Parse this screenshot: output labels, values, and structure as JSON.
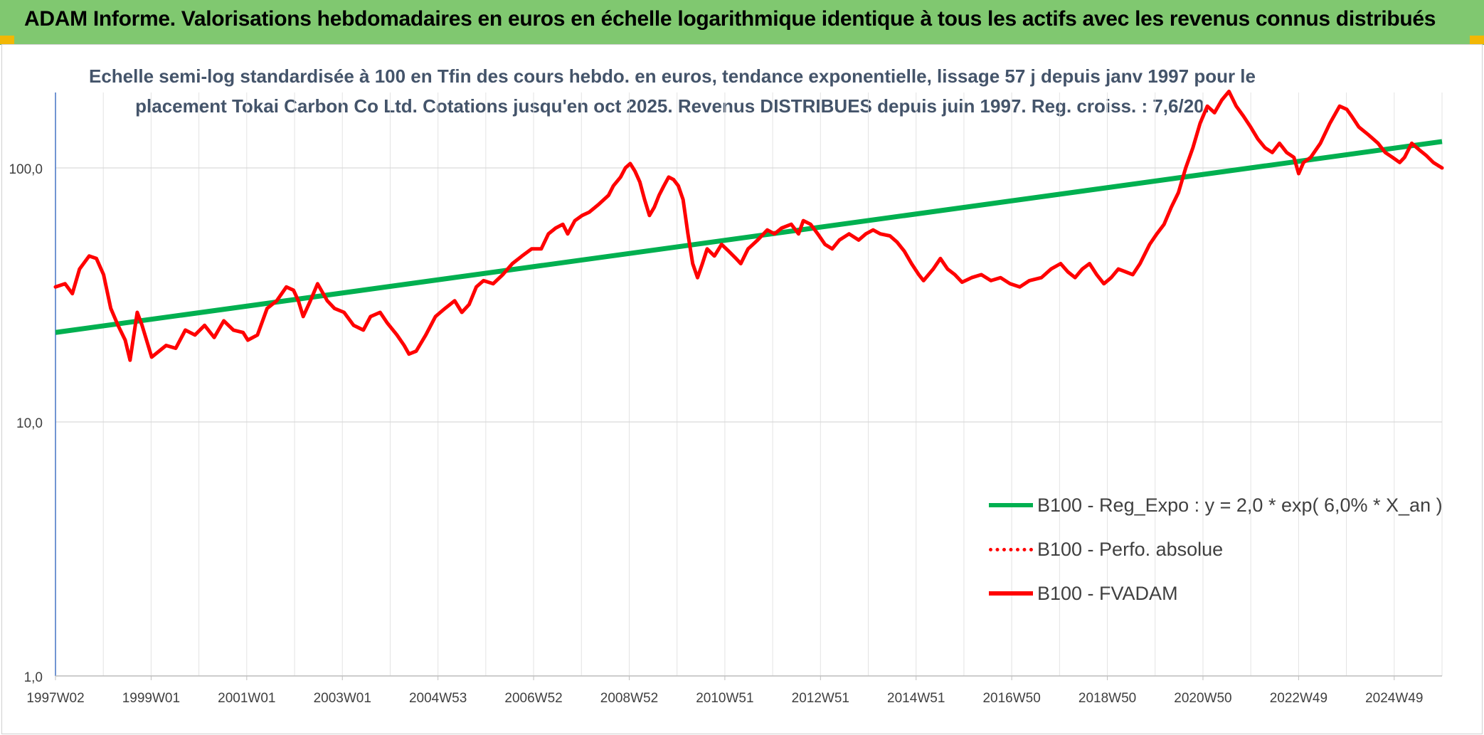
{
  "header": {
    "title": "ADAM Informe. Valorisations hebdomadaires en euros en échelle logarithmique identique à tous les actifs avec les revenus connus distribués"
  },
  "colors": {
    "header_bg": "#80c870",
    "trend": "#00b050",
    "series": "#ff0000",
    "title_text": "#44546a"
  },
  "chart_data": {
    "type": "line",
    "title_line1": "Echelle semi-log standardisée à 100 en Tfin des cours hebdo. en euros, tendance exponentielle, lissage 57 j depuis janv 1997 pour le",
    "title_line2": "placement Tokai Carbon Co Ltd. Cotations jusqu'en oct 2025. Revenus DISTRIBUES depuis juin 1997. Reg. croiss. : 7,6/20.",
    "y_scale": "log",
    "ylim": [
      1,
      200
    ],
    "y_ticks": [
      "1,0",
      "10,0",
      "100,0"
    ],
    "y_tick_values": [
      1,
      10,
      100
    ],
    "x_range": [
      1997.0,
      2025.83
    ],
    "x_ticks": [
      "1997W02",
      "1999W01",
      "2001W01",
      "2003W01",
      "2004W53",
      "2006W52",
      "2008W52",
      "2010W51",
      "2012W51",
      "2014W51",
      "2016W50",
      "2018W50",
      "2020W50",
      "2022W49",
      "2024W49"
    ],
    "grid": true,
    "legend_position": "bottom-right",
    "series": [
      {
        "name": "B100 - Reg_Expo : y = 2,0 * exp( 6,0% *  X_an )",
        "style": "solid-green",
        "values": [
          [
            1997.0,
            22.5
          ],
          [
            2025.83,
            127
          ]
        ]
      },
      {
        "name": "B100 - Perfo. absolue",
        "style": "dotted-red",
        "values": []
      },
      {
        "name": "B100 - FVADAM",
        "style": "solid-red",
        "values": [
          [
            1997.0,
            34
          ],
          [
            1997.2,
            35
          ],
          [
            1997.35,
            32
          ],
          [
            1997.5,
            40
          ],
          [
            1997.7,
            45
          ],
          [
            1997.85,
            44
          ],
          [
            1998.0,
            38
          ],
          [
            1998.15,
            28
          ],
          [
            1998.3,
            24
          ],
          [
            1998.45,
            21
          ],
          [
            1998.55,
            17.5
          ],
          [
            1998.7,
            27
          ],
          [
            1998.8,
            24
          ],
          [
            1999.0,
            18
          ],
          [
            1999.3,
            20
          ],
          [
            1999.5,
            19.5
          ],
          [
            1999.7,
            23
          ],
          [
            1999.9,
            22
          ],
          [
            2000.1,
            24
          ],
          [
            2000.3,
            21.5
          ],
          [
            2000.5,
            25
          ],
          [
            2000.7,
            23
          ],
          [
            2000.9,
            22.5
          ],
          [
            2001.0,
            21
          ],
          [
            2001.2,
            22
          ],
          [
            2001.4,
            28
          ],
          [
            2001.6,
            30
          ],
          [
            2001.8,
            34
          ],
          [
            2001.95,
            33
          ],
          [
            2002.05,
            30
          ],
          [
            2002.15,
            26
          ],
          [
            2002.3,
            30
          ],
          [
            2002.45,
            35
          ],
          [
            2002.65,
            30
          ],
          [
            2002.8,
            28
          ],
          [
            2003.0,
            27
          ],
          [
            2003.2,
            24
          ],
          [
            2003.4,
            23
          ],
          [
            2003.55,
            26
          ],
          [
            2003.75,
            27
          ],
          [
            2003.9,
            24.5
          ],
          [
            2004.1,
            22
          ],
          [
            2004.25,
            20
          ],
          [
            2004.35,
            18.5
          ],
          [
            2004.5,
            19
          ],
          [
            2004.7,
            22
          ],
          [
            2004.9,
            26
          ],
          [
            2005.1,
            28
          ],
          [
            2005.3,
            30
          ],
          [
            2005.45,
            27
          ],
          [
            2005.6,
            29
          ],
          [
            2005.75,
            34
          ],
          [
            2005.9,
            36
          ],
          [
            2006.1,
            35
          ],
          [
            2006.3,
            38
          ],
          [
            2006.5,
            42
          ],
          [
            2006.7,
            45
          ],
          [
            2006.9,
            48
          ],
          [
            2007.1,
            48
          ],
          [
            2007.25,
            55
          ],
          [
            2007.4,
            58
          ],
          [
            2007.55,
            60
          ],
          [
            2007.65,
            55
          ],
          [
            2007.8,
            62
          ],
          [
            2007.95,
            65
          ],
          [
            2008.1,
            67
          ],
          [
            2008.3,
            72
          ],
          [
            2008.5,
            78
          ],
          [
            2008.6,
            85
          ],
          [
            2008.75,
            92
          ],
          [
            2008.85,
            100
          ],
          [
            2008.95,
            104
          ],
          [
            2009.05,
            97
          ],
          [
            2009.15,
            88
          ],
          [
            2009.25,
            75
          ],
          [
            2009.35,
            65
          ],
          [
            2009.45,
            70
          ],
          [
            2009.55,
            78
          ],
          [
            2009.65,
            85
          ],
          [
            2009.75,
            92
          ],
          [
            2009.85,
            90
          ],
          [
            2009.95,
            85
          ],
          [
            2010.05,
            75
          ],
          [
            2010.15,
            55
          ],
          [
            2010.25,
            42
          ],
          [
            2010.35,
            37
          ],
          [
            2010.45,
            42
          ],
          [
            2010.55,
            48
          ],
          [
            2010.7,
            45
          ],
          [
            2010.85,
            50
          ],
          [
            2011.0,
            47
          ],
          [
            2011.15,
            44
          ],
          [
            2011.25,
            42
          ],
          [
            2011.4,
            48
          ],
          [
            2011.6,
            52
          ],
          [
            2011.8,
            57
          ],
          [
            2011.95,
            55
          ],
          [
            2012.1,
            58
          ],
          [
            2012.3,
            60
          ],
          [
            2012.45,
            55
          ],
          [
            2012.55,
            62
          ],
          [
            2012.7,
            60
          ],
          [
            2012.85,
            55
          ],
          [
            2013.0,
            50
          ],
          [
            2013.15,
            48
          ],
          [
            2013.3,
            52
          ],
          [
            2013.5,
            55
          ],
          [
            2013.7,
            52
          ],
          [
            2013.85,
            55
          ],
          [
            2014.0,
            57
          ],
          [
            2014.15,
            55
          ],
          [
            2014.35,
            54
          ],
          [
            2014.5,
            51
          ],
          [
            2014.65,
            47
          ],
          [
            2014.8,
            42
          ],
          [
            2014.95,
            38
          ],
          [
            2015.05,
            36
          ],
          [
            2015.25,
            40
          ],
          [
            2015.4,
            44
          ],
          [
            2015.55,
            40
          ],
          [
            2015.7,
            38
          ],
          [
            2015.85,
            35.5
          ],
          [
            2016.05,
            37
          ],
          [
            2016.25,
            38
          ],
          [
            2016.45,
            36
          ],
          [
            2016.65,
            37
          ],
          [
            2016.85,
            35
          ],
          [
            2017.05,
            34
          ],
          [
            2017.25,
            36
          ],
          [
            2017.5,
            37
          ],
          [
            2017.7,
            40
          ],
          [
            2017.9,
            42
          ],
          [
            2018.05,
            39
          ],
          [
            2018.2,
            37
          ],
          [
            2018.35,
            40
          ],
          [
            2018.5,
            42
          ],
          [
            2018.65,
            38
          ],
          [
            2018.8,
            35
          ],
          [
            2018.95,
            37
          ],
          [
            2019.1,
            40
          ],
          [
            2019.25,
            39
          ],
          [
            2019.4,
            38
          ],
          [
            2019.55,
            42
          ],
          [
            2019.75,
            50
          ],
          [
            2019.9,
            55
          ],
          [
            2020.05,
            60
          ],
          [
            2020.2,
            70
          ],
          [
            2020.35,
            80
          ],
          [
            2020.5,
            100
          ],
          [
            2020.65,
            120
          ],
          [
            2020.8,
            150
          ],
          [
            2020.95,
            175
          ],
          [
            2021.1,
            165
          ],
          [
            2021.25,
            185
          ],
          [
            2021.4,
            200
          ],
          [
            2021.55,
            175
          ],
          [
            2021.7,
            160
          ],
          [
            2021.85,
            145
          ],
          [
            2022.0,
            130
          ],
          [
            2022.15,
            120
          ],
          [
            2022.3,
            115
          ],
          [
            2022.45,
            125
          ],
          [
            2022.6,
            115
          ],
          [
            2022.75,
            110
          ],
          [
            2022.85,
            95
          ],
          [
            2022.95,
            105
          ],
          [
            2023.1,
            110
          ],
          [
            2023.3,
            125
          ],
          [
            2023.5,
            150
          ],
          [
            2023.7,
            175
          ],
          [
            2023.85,
            170
          ],
          [
            2023.95,
            160
          ],
          [
            2024.1,
            145
          ],
          [
            2024.3,
            135
          ],
          [
            2024.5,
            125
          ],
          [
            2024.65,
            115
          ],
          [
            2024.8,
            110
          ],
          [
            2024.95,
            105
          ],
          [
            2025.05,
            110
          ],
          [
            2025.2,
            125
          ],
          [
            2025.35,
            118
          ],
          [
            2025.5,
            112
          ],
          [
            2025.65,
            105
          ],
          [
            2025.83,
            100
          ]
        ]
      }
    ]
  }
}
